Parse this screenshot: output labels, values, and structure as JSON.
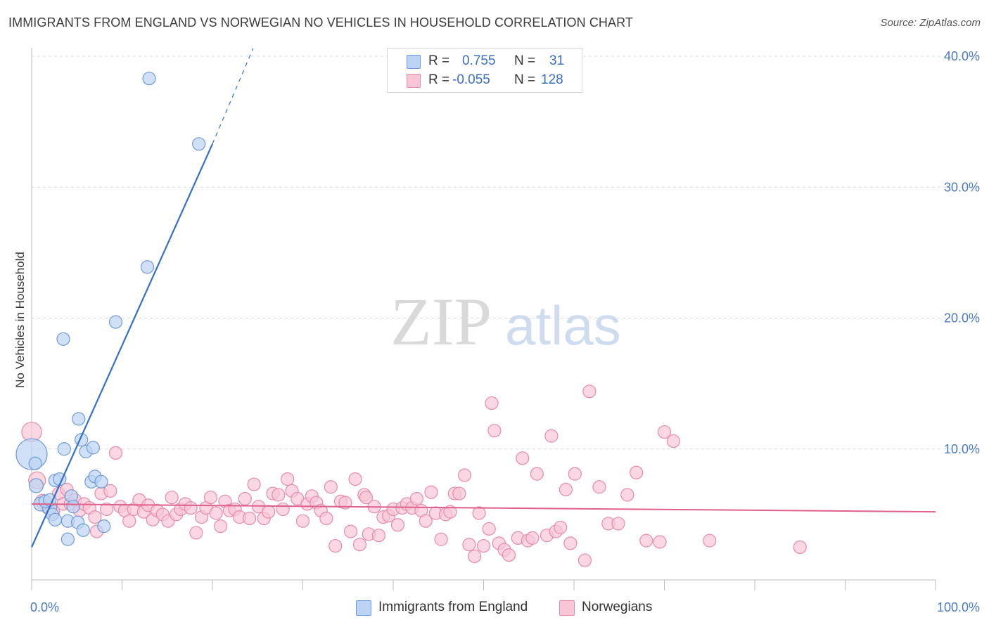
{
  "title": "IMMIGRANTS FROM ENGLAND VS NORWEGIAN NO VEHICLES IN HOUSEHOLD CORRELATION CHART",
  "source": "Source: ZipAtlas.com",
  "watermark": {
    "zip": "ZIP",
    "atlas": "atlas"
  },
  "legend": {
    "r_label": "R =",
    "n_label": "N =",
    "series": [
      {
        "name": "Immigrants from England",
        "r": "0.755",
        "n": "31",
        "fill": "#bcd4f4",
        "stroke": "#6f9ad8"
      },
      {
        "name": "Norwegians",
        "r": "-0.055",
        "n": "128",
        "fill": "#f8c6d6",
        "stroke": "#e88aaa"
      }
    ]
  },
  "colors": {
    "blue_fill": "#bcd4f4",
    "blue_stroke": "#6f9ad8",
    "blue_line": "#3470c8",
    "pink_fill": "#f8c6d6",
    "pink_stroke": "#e88aaa",
    "pink_line": "#e0608a",
    "tick_color": "#4a7ac4",
    "grid": "#d9d9d9"
  },
  "chart_data": {
    "type": "scatter",
    "title": "IMMIGRANTS FROM ENGLAND VS NORWEGIAN NO VEHICLES IN HOUSEHOLD CORRELATION CHART",
    "xlabel": "",
    "ylabel": "No Vehicles in Household",
    "xlim": [
      0,
      100
    ],
    "ylim": [
      0,
      40
    ],
    "x_tick_labels": [
      {
        "value": 0,
        "label": "0.0%"
      },
      {
        "value": 100,
        "label": "100.0%"
      }
    ],
    "y_tick_labels": [
      {
        "value": 10,
        "label": "10.0%"
      },
      {
        "value": 20,
        "label": "20.0%"
      },
      {
        "value": 30,
        "label": "30.0%"
      },
      {
        "value": 40,
        "label": "40.0%"
      }
    ],
    "x_minor_ticks": [
      10,
      20,
      30,
      40,
      50,
      60,
      70,
      80,
      90,
      100
    ],
    "series": [
      {
        "name": "Immigrants from England",
        "color": "blue",
        "trend": {
          "x0": 0,
          "y0": 2.5,
          "x1": 20,
          "y1": 33.3,
          "dash_to_x": 24.5,
          "dash_to_y": 40.6
        },
        "points": [
          [
            0.0,
            9.6,
            22
          ],
          [
            0.5,
            7.2,
            10
          ],
          [
            1.0,
            5.8,
            10
          ],
          [
            2.0,
            5.5,
            10
          ],
          [
            2.3,
            5.0,
            9
          ],
          [
            2.6,
            7.6,
            9
          ],
          [
            2.6,
            4.6,
            9
          ],
          [
            3.1,
            7.7,
            9
          ],
          [
            3.5,
            18.4,
            9
          ],
          [
            3.6,
            10.0,
            9
          ],
          [
            4.0,
            4.5,
            9
          ],
          [
            4.0,
            3.1,
            9
          ],
          [
            4.4,
            6.4,
            9
          ],
          [
            4.6,
            5.6,
            9
          ],
          [
            5.1,
            4.4,
            9
          ],
          [
            5.2,
            12.3,
            9
          ],
          [
            5.5,
            10.7,
            9
          ],
          [
            5.7,
            3.8,
            9
          ],
          [
            6.0,
            9.8,
            9
          ],
          [
            6.6,
            7.5,
            9
          ],
          [
            6.8,
            10.1,
            9
          ],
          [
            7.0,
            7.9,
            9
          ],
          [
            7.7,
            7.5,
            9
          ],
          [
            8.0,
            4.1,
            9
          ],
          [
            9.3,
            19.7,
            9
          ],
          [
            12.8,
            23.9,
            9
          ],
          [
            13.0,
            38.3,
            9
          ],
          [
            18.5,
            33.3,
            9
          ],
          [
            0.4,
            8.9,
            9
          ],
          [
            1.5,
            6.0,
            9
          ],
          [
            2.0,
            6.1,
            9
          ]
        ]
      },
      {
        "name": "Norwegians",
        "color": "pink",
        "trend": {
          "x0": 0,
          "y0": 5.8,
          "x1": 100,
          "y1": 5.2
        },
        "points": [
          [
            0.0,
            11.3,
            14
          ],
          [
            0.6,
            7.6,
            12
          ],
          [
            1.2,
            6.0,
            10
          ],
          [
            1.8,
            5.5,
            9
          ],
          [
            2.4,
            5.2,
            9
          ],
          [
            3.0,
            6.6,
            9
          ],
          [
            3.5,
            5.8,
            9
          ],
          [
            3.9,
            6.9,
            9
          ],
          [
            4.3,
            5.8,
            9
          ],
          [
            4.8,
            6.1,
            9
          ],
          [
            5.3,
            5.3,
            9
          ],
          [
            5.8,
            5.8,
            9
          ],
          [
            6.4,
            5.5,
            9
          ],
          [
            7.0,
            4.8,
            9
          ],
          [
            7.7,
            6.6,
            9
          ],
          [
            8.3,
            5.4,
            9
          ],
          [
            8.7,
            6.8,
            9
          ],
          [
            9.3,
            9.7,
            9
          ],
          [
            9.8,
            5.6,
            9
          ],
          [
            10.3,
            5.3,
            9
          ],
          [
            10.8,
            4.5,
            9
          ],
          [
            11.3,
            5.4,
            9
          ],
          [
            11.9,
            6.1,
            9
          ],
          [
            12.4,
            5.2,
            9
          ],
          [
            12.9,
            5.7,
            9
          ],
          [
            13.4,
            4.6,
            9
          ],
          [
            13.9,
            5.3,
            9
          ],
          [
            14.5,
            5.0,
            9
          ],
          [
            15.1,
            4.5,
            9
          ],
          [
            15.5,
            6.3,
            9
          ],
          [
            16.0,
            5.0,
            9
          ],
          [
            16.5,
            5.4,
            9
          ],
          [
            17.0,
            5.8,
            9
          ],
          [
            17.6,
            5.5,
            9
          ],
          [
            18.2,
            3.6,
            9
          ],
          [
            18.8,
            4.8,
            9
          ],
          [
            19.3,
            5.5,
            9
          ],
          [
            19.8,
            6.3,
            9
          ],
          [
            20.4,
            5.1,
            9
          ],
          [
            20.9,
            4.1,
            9
          ],
          [
            21.4,
            6.0,
            9
          ],
          [
            21.9,
            5.3,
            9
          ],
          [
            22.5,
            5.4,
            9
          ],
          [
            23.0,
            4.8,
            9
          ],
          [
            23.6,
            6.2,
            9
          ],
          [
            24.1,
            4.7,
            9
          ],
          [
            24.6,
            7.3,
            9
          ],
          [
            25.1,
            5.6,
            9
          ],
          [
            25.7,
            4.7,
            9
          ],
          [
            26.2,
            5.2,
            9
          ],
          [
            26.7,
            6.6,
            9
          ],
          [
            27.3,
            6.5,
            9
          ],
          [
            27.8,
            5.4,
            9
          ],
          [
            28.3,
            7.7,
            9
          ],
          [
            28.8,
            6.8,
            9
          ],
          [
            29.4,
            6.2,
            9
          ],
          [
            30.0,
            4.5,
            9
          ],
          [
            30.5,
            5.8,
            9
          ],
          [
            31.0,
            6.4,
            9
          ],
          [
            31.5,
            5.9,
            9
          ],
          [
            32.0,
            5.3,
            9
          ],
          [
            32.6,
            4.7,
            9
          ],
          [
            33.1,
            7.1,
            9
          ],
          [
            33.6,
            2.6,
            9
          ],
          [
            34.2,
            6.0,
            9
          ],
          [
            34.7,
            5.9,
            9
          ],
          [
            35.3,
            3.7,
            9
          ],
          [
            35.8,
            7.7,
            9
          ],
          [
            36.3,
            2.7,
            9
          ],
          [
            36.8,
            6.5,
            9
          ],
          [
            37.3,
            3.5,
            9
          ],
          [
            37.9,
            5.6,
            9
          ],
          [
            38.4,
            3.4,
            9
          ],
          [
            38.9,
            4.8,
            9
          ],
          [
            39.5,
            4.9,
            9
          ],
          [
            40.0,
            5.4,
            9
          ],
          [
            40.5,
            4.2,
            9
          ],
          [
            41.0,
            5.5,
            9
          ],
          [
            41.5,
            5.8,
            9
          ],
          [
            42.1,
            5.5,
            9
          ],
          [
            42.6,
            6.2,
            9
          ],
          [
            43.1,
            5.3,
            9
          ],
          [
            43.6,
            4.5,
            9
          ],
          [
            44.2,
            6.7,
            9
          ],
          [
            44.7,
            5.1,
            9
          ],
          [
            45.3,
            3.1,
            9
          ],
          [
            45.8,
            5.0,
            9
          ],
          [
            46.3,
            5.2,
            9
          ],
          [
            46.8,
            6.6,
            9
          ],
          [
            47.3,
            6.6,
            9
          ],
          [
            47.9,
            8.0,
            9
          ],
          [
            48.4,
            2.7,
            9
          ],
          [
            49.0,
            1.8,
            9
          ],
          [
            49.5,
            5.1,
            9
          ],
          [
            50.0,
            2.6,
            9
          ],
          [
            50.6,
            3.9,
            9
          ],
          [
            50.9,
            13.5,
            9
          ],
          [
            51.2,
            11.4,
            9
          ],
          [
            51.7,
            2.8,
            9
          ],
          [
            52.3,
            2.3,
            9
          ],
          [
            52.8,
            1.9,
            9
          ],
          [
            53.8,
            3.2,
            9
          ],
          [
            54.9,
            3.0,
            9
          ],
          [
            55.4,
            3.2,
            9
          ],
          [
            54.3,
            9.3,
            9
          ],
          [
            55.9,
            8.1,
            9
          ],
          [
            57.0,
            3.4,
            9
          ],
          [
            57.5,
            11.0,
            9
          ],
          [
            58.0,
            3.7,
            9
          ],
          [
            58.5,
            4.0,
            9
          ],
          [
            59.1,
            6.9,
            9
          ],
          [
            59.6,
            2.8,
            9
          ],
          [
            60.1,
            8.1,
            9
          ],
          [
            61.2,
            1.5,
            9
          ],
          [
            61.7,
            14.4,
            9
          ],
          [
            62.8,
            7.1,
            9
          ],
          [
            63.8,
            4.3,
            9
          ],
          [
            64.9,
            4.3,
            9
          ],
          [
            65.9,
            6.5,
            9
          ],
          [
            66.9,
            8.2,
            9
          ],
          [
            70.0,
            11.3,
            9
          ],
          [
            71.0,
            10.6,
            9
          ],
          [
            68.0,
            3.0,
            9
          ],
          [
            69.5,
            2.9,
            9
          ],
          [
            75.0,
            3.0,
            9
          ],
          [
            85.0,
            2.5,
            9
          ],
          [
            7.2,
            3.7,
            9
          ],
          [
            37.0,
            6.3,
            9
          ]
        ]
      }
    ]
  }
}
